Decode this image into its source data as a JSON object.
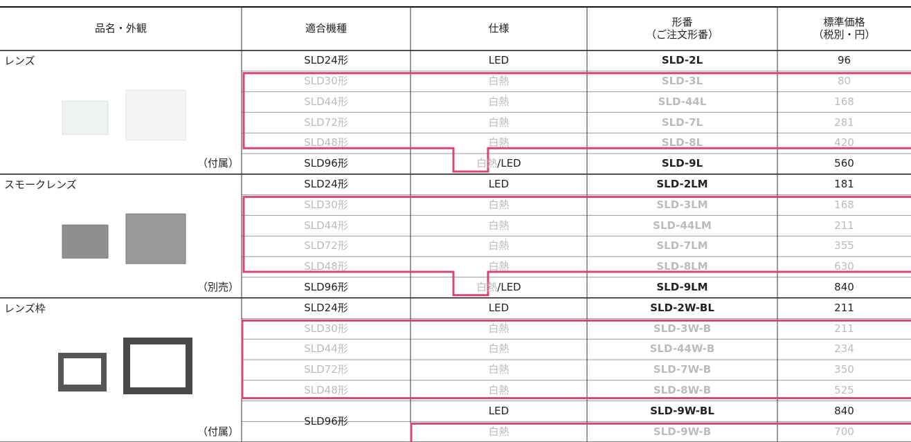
{
  "header": {
    "columns": [
      [
        "品名・外観"
      ],
      [
        "適合機種"
      ],
      [
        "仕様"
      ],
      [
        "形番",
        "（ご注文形番）"
      ],
      [
        "標準価格",
        "（税別・円）"
      ]
    ]
  },
  "groups": [
    {
      "name": "レンズ",
      "note": "（付属）",
      "rows": [
        {
          "model": "SLD24形",
          "spec": "LED",
          "part": "SLD-2L",
          "price": 96
        },
        {
          "model": "SLD30形",
          "spec": "白熱",
          "part": "SLD-3L",
          "price": 80,
          "muted": true
        },
        {
          "model": "SLD44形",
          "spec": "白熱",
          "part": "SLD-44L",
          "price": 168,
          "muted": true
        },
        {
          "model": "SLD72形",
          "spec": "白熱",
          "part": "SLD-7L",
          "price": 281,
          "muted": true
        },
        {
          "model": "SLD48形",
          "spec": "白熱",
          "part": "SLD-8L",
          "price": 420,
          "muted": true
        },
        {
          "model": "SLD96形",
          "spec": [
            "白熱",
            "/LED"
          ],
          "part": "SLD-9L",
          "price": 560
        }
      ]
    },
    {
      "name": "スモークレンズ",
      "note": "（別売）",
      "rows": [
        {
          "model": "SLD24形",
          "spec": "LED",
          "part": "SLD-2LM",
          "price": 181
        },
        {
          "model": "SLD30形",
          "spec": "白熱",
          "part": "SLD-3LM",
          "price": 168,
          "muted": true
        },
        {
          "model": "SLD44形",
          "spec": "白熱",
          "part": "SLD-44LM",
          "price": 211,
          "muted": true
        },
        {
          "model": "SLD72形",
          "spec": "白熱",
          "part": "SLD-7LM",
          "price": 355,
          "muted": true
        },
        {
          "model": "SLD48形",
          "spec": "白熱",
          "part": "SLD-8LM",
          "price": 630,
          "muted": true
        },
        {
          "model": "SLD96形",
          "spec": [
            "白熱",
            "/LED"
          ],
          "part": "SLD-9LM",
          "price": 840
        }
      ]
    },
    {
      "name": "レンズ枠",
      "note": "（付属）",
      "rows": [
        {
          "model": "SLD24形",
          "spec": "LED",
          "part": "SLD-2W-BL",
          "price": 211
        },
        {
          "model": "SLD30形",
          "spec": "白熱",
          "part": "SLD-3W-B",
          "price": 211,
          "muted": true
        },
        {
          "model": "SLD44形",
          "spec": "白熱",
          "part": "SLD-44W-B",
          "price": 234,
          "muted": true
        },
        {
          "model": "SLD72形",
          "spec": "白熱",
          "part": "SLD-7W-B",
          "price": 350,
          "muted": true
        },
        {
          "model": "SLD48形",
          "spec": "白熱",
          "part": "SLD-8W-B",
          "price": 525,
          "muted": true
        },
        {
          "model": "SLD96形",
          "variants": [
            {
              "spec": "LED",
              "part": "SLD-9W-BL",
              "price": 840
            },
            {
              "spec": "白熱",
              "part": "SLD-9W-B",
              "price": 700,
              "muted": true
            }
          ]
        }
      ]
    }
  ]
}
